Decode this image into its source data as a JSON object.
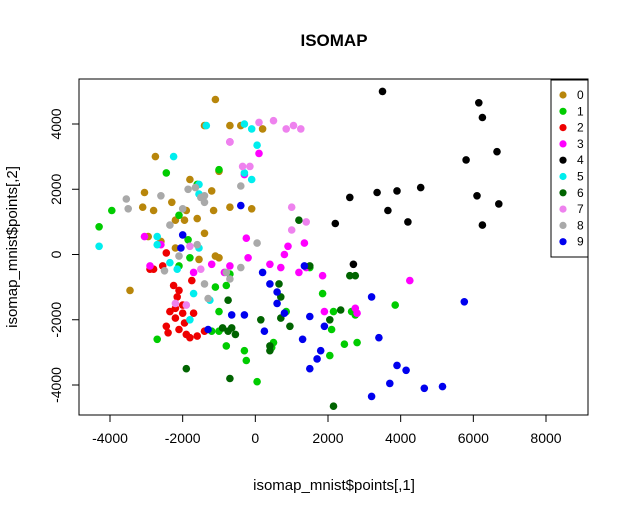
{
  "chart_data": {
    "type": "scatter",
    "title": "ISOMAP",
    "xlabel": "isomap_mnist$points[,1]",
    "ylabel": "isomap_mnist$points[,2]",
    "xlim": [
      -5000,
      9000
    ],
    "ylim": [
      -5000,
      5000
    ],
    "x_ticks": [
      -4000,
      -2000,
      0,
      2000,
      4000,
      6000,
      8000
    ],
    "y_ticks": [
      -4000,
      -2000,
      0,
      2000,
      4000
    ],
    "grid": false,
    "legend_position": "top-right",
    "series": [
      {
        "name": "0",
        "color": "#B8860B",
        "points": [
          [
            -1100,
            4750
          ],
          [
            -700,
            3950
          ],
          [
            -400,
            3950
          ],
          [
            -1400,
            3950
          ],
          [
            200,
            3850
          ],
          [
            -2750,
            3000
          ],
          [
            -1800,
            2300
          ],
          [
            -1000,
            2550
          ],
          [
            -3050,
            1900
          ],
          [
            -2300,
            1600
          ],
          [
            -1200,
            1950
          ],
          [
            -1900,
            1350
          ],
          [
            -2800,
            1350
          ],
          [
            -3100,
            1450
          ],
          [
            -1150,
            1350
          ],
          [
            -700,
            1450
          ],
          [
            -100,
            1400
          ],
          [
            -2200,
            1050
          ],
          [
            -1950,
            1050
          ],
          [
            -1600,
            1100
          ],
          [
            -2950,
            550
          ],
          [
            -1400,
            650
          ],
          [
            -2200,
            200
          ],
          [
            -1550,
            -150
          ],
          [
            -3450,
            -1100
          ],
          [
            -1100,
            -50
          ],
          [
            -1000,
            -100
          ],
          [
            -2600,
            400
          ]
        ]
      },
      {
        "name": "1",
        "color": "#00CC00",
        "points": [
          [
            -4300,
            850
          ],
          [
            -3950,
            1350
          ],
          [
            -2450,
            2500
          ],
          [
            -1600,
            2150
          ],
          [
            -1000,
            2600
          ],
          [
            -2100,
            1200
          ],
          [
            -1800,
            -100
          ],
          [
            -1100,
            -1000
          ],
          [
            -800,
            -950
          ],
          [
            -700,
            -600
          ],
          [
            -1000,
            -1750
          ],
          [
            -1200,
            -2350
          ],
          [
            -1000,
            -2350
          ],
          [
            -800,
            -2800
          ],
          [
            -2700,
            -2600
          ],
          [
            -300,
            -2950
          ],
          [
            -250,
            -3250
          ],
          [
            50,
            -3900
          ],
          [
            450,
            -2850
          ],
          [
            500,
            -2700
          ],
          [
            850,
            -1750
          ],
          [
            1500,
            -400
          ],
          [
            1850,
            -1200
          ],
          [
            2150,
            -1750
          ],
          [
            2100,
            -2300
          ],
          [
            2750,
            -1850
          ],
          [
            2650,
            -1750
          ],
          [
            2450,
            -2750
          ],
          [
            2800,
            -2700
          ],
          [
            2050,
            -3100
          ],
          [
            3850,
            -1550
          ],
          [
            -2100,
            -350
          ],
          [
            -1850,
            450
          ]
        ]
      },
      {
        "name": "2",
        "color": "#EE0000",
        "points": [
          [
            -2550,
            -350
          ],
          [
            -2800,
            -450
          ],
          [
            -2900,
            -450
          ],
          [
            -2250,
            -950
          ],
          [
            -2100,
            -1100
          ],
          [
            -2150,
            -1300
          ],
          [
            -2000,
            -1550
          ],
          [
            -2200,
            -1650
          ],
          [
            -2350,
            -1750
          ],
          [
            -2000,
            -1800
          ],
          [
            -1700,
            -1800
          ],
          [
            -2200,
            -1950
          ],
          [
            -1950,
            -2100
          ],
          [
            -2450,
            -2200
          ],
          [
            -2400,
            -2400
          ],
          [
            -2100,
            -2300
          ],
          [
            -1900,
            -2450
          ],
          [
            -1600,
            -2500
          ],
          [
            -1800,
            -2550
          ],
          [
            -1400,
            -2350
          ],
          [
            -2450,
            50
          ],
          [
            -1750,
            -800
          ]
        ]
      },
      {
        "name": "3",
        "color": "#FF00FF",
        "points": [
          [
            -3050,
            550
          ],
          [
            -2600,
            300
          ],
          [
            -1700,
            -550
          ],
          [
            -1200,
            -300
          ],
          [
            -850,
            -550
          ],
          [
            -700,
            -350
          ],
          [
            -700,
            3450
          ],
          [
            -300,
            2450
          ],
          [
            -250,
            500
          ],
          [
            -200,
            -100
          ],
          [
            400,
            -300
          ],
          [
            700,
            -400
          ],
          [
            800,
            0
          ],
          [
            1200,
            -550
          ],
          [
            1350,
            350
          ],
          [
            1400,
            -400
          ],
          [
            1850,
            -650
          ],
          [
            1900,
            -1750
          ],
          [
            2750,
            -1650
          ],
          [
            2800,
            -1800
          ],
          [
            4250,
            -800
          ],
          [
            -2900,
            -350
          ],
          [
            900,
            250
          ],
          [
            100,
            3100
          ]
        ]
      },
      {
        "name": "4",
        "color": "#000000",
        "points": [
          [
            3500,
            5000
          ],
          [
            6150,
            4650
          ],
          [
            6250,
            4200
          ],
          [
            6650,
            3150
          ],
          [
            5800,
            2900
          ],
          [
            4550,
            2050
          ],
          [
            3900,
            1950
          ],
          [
            3350,
            1900
          ],
          [
            6100,
            1800
          ],
          [
            2600,
            1750
          ],
          [
            3650,
            1350
          ],
          [
            4200,
            1000
          ],
          [
            6700,
            1550
          ],
          [
            6250,
            900
          ],
          [
            2200,
            950
          ],
          [
            2700,
            -300
          ]
        ]
      },
      {
        "name": "5",
        "color": "#00EEEE",
        "points": [
          [
            -1350,
            3950
          ],
          [
            -300,
            4000
          ],
          [
            -100,
            3850
          ],
          [
            50,
            3350
          ],
          [
            -2250,
            3000
          ],
          [
            -1550,
            2150
          ],
          [
            -1550,
            1850
          ],
          [
            -300,
            2500
          ],
          [
            -100,
            2300
          ],
          [
            -2700,
            550
          ],
          [
            -2700,
            300
          ],
          [
            -2150,
            -450
          ],
          [
            -1700,
            -1200
          ],
          [
            -1250,
            -1400
          ],
          [
            -1800,
            -2000
          ],
          [
            -1550,
            200
          ],
          [
            -4300,
            250
          ],
          [
            -2350,
            -250
          ]
        ]
      },
      {
        "name": "6",
        "color": "#006400",
        "points": [
          [
            -1900,
            -3500
          ],
          [
            -900,
            -2250
          ],
          [
            -750,
            -2350
          ],
          [
            -550,
            -2450
          ],
          [
            -700,
            -3800
          ],
          [
            -650,
            -2250
          ],
          [
            -750,
            -1400
          ],
          [
            150,
            -2000
          ],
          [
            400,
            -2800
          ],
          [
            400,
            -2950
          ],
          [
            650,
            -900
          ],
          [
            700,
            -1300
          ],
          [
            700,
            -1950
          ],
          [
            950,
            -2200
          ],
          [
            1200,
            1050
          ],
          [
            1500,
            -350
          ],
          [
            2600,
            -650
          ],
          [
            2750,
            -650
          ],
          [
            2350,
            -1700
          ],
          [
            2050,
            -2000
          ],
          [
            2150,
            -4650
          ]
        ]
      },
      {
        "name": "7",
        "color": "#EE82EE",
        "points": [
          [
            -700,
            3450
          ],
          [
            100,
            4050
          ],
          [
            500,
            4100
          ],
          [
            850,
            3850
          ],
          [
            1050,
            3950
          ],
          [
            1250,
            3850
          ],
          [
            -350,
            2700
          ],
          [
            -150,
            2700
          ],
          [
            -1900,
            -1550
          ],
          [
            -1500,
            -450
          ],
          [
            -1800,
            250
          ],
          [
            1000,
            1450
          ],
          [
            1400,
            1000
          ],
          [
            1000,
            750
          ],
          [
            -2200,
            -1500
          ]
        ]
      },
      {
        "name": "8",
        "color": "#A9A9A9",
        "points": [
          [
            -3550,
            1700
          ],
          [
            -3500,
            1400
          ],
          [
            -2600,
            1800
          ],
          [
            -1850,
            2000
          ],
          [
            -1650,
            2050
          ],
          [
            -1500,
            1750
          ],
          [
            -1400,
            1800
          ],
          [
            -2000,
            1400
          ],
          [
            -2350,
            900
          ],
          [
            -1400,
            1600
          ],
          [
            -400,
            2100
          ],
          [
            50,
            350
          ],
          [
            -1300,
            -1350
          ],
          [
            -1400,
            -900
          ],
          [
            -800,
            -550
          ],
          [
            -700,
            -750
          ],
          [
            -2500,
            -500
          ],
          [
            -2100,
            -50
          ],
          [
            -400,
            -400
          ],
          [
            -1600,
            300
          ]
        ]
      },
      {
        "name": "9",
        "color": "#0000EE",
        "points": [
          [
            -2000,
            600
          ],
          [
            -400,
            1500
          ],
          [
            -650,
            -1850
          ],
          [
            -300,
            -1850
          ],
          [
            200,
            -550
          ],
          [
            400,
            -900
          ],
          [
            600,
            -1150
          ],
          [
            600,
            -1500
          ],
          [
            800,
            -1800
          ],
          [
            250,
            -2350
          ],
          [
            1500,
            -1900
          ],
          [
            1300,
            -2600
          ],
          [
            1900,
            -2200
          ],
          [
            1800,
            -2950
          ],
          [
            1500,
            -3500
          ],
          [
            1700,
            -3200
          ],
          [
            3200,
            -1300
          ],
          [
            3400,
            -2550
          ],
          [
            3200,
            -4350
          ],
          [
            3700,
            -3950
          ],
          [
            3900,
            -3400
          ],
          [
            4150,
            -3550
          ],
          [
            4650,
            -4100
          ],
          [
            5150,
            -4050
          ],
          [
            5750,
            -1450
          ],
          [
            -2050,
            200
          ],
          [
            1350,
            -350
          ],
          [
            -1300,
            -2300
          ]
        ]
      }
    ]
  }
}
